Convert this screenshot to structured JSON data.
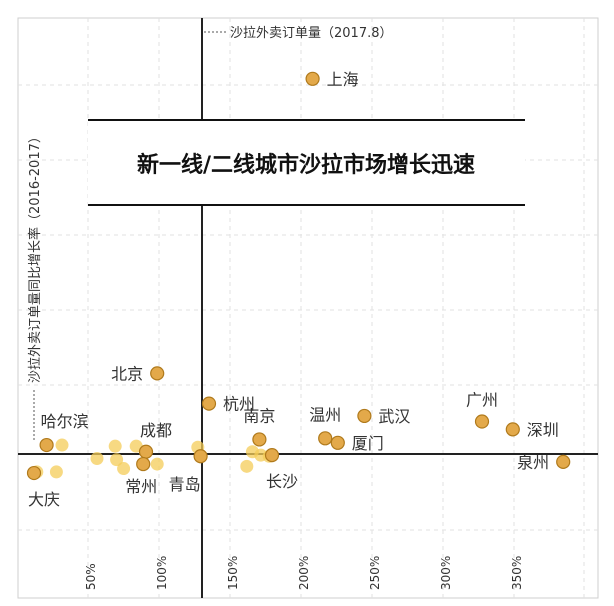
{
  "chart_data": {
    "type": "scatter",
    "title": "新一线/二线城市沙拉市场增长迅速",
    "xlabel": "沙拉外卖订单量（2017.8）",
    "ylabel": "沙拉外卖订单量同比增长率（2016-2017）",
    "xtick_labels": [
      "50%",
      "100%",
      "150%",
      "200%",
      "250%",
      "300%",
      "350%"
    ],
    "grid": true,
    "colors": {
      "dot_fill": "#e3a94a",
      "dot_stroke": "#b07a1c",
      "faint_dot": "#f4cc58",
      "axis": "#222222",
      "grid": "#e2e2e2"
    },
    "points": [
      {
        "name": "上海",
        "x": 209,
        "y": 335
      },
      {
        "name": "北京",
        "x": 98,
        "y": 72
      },
      {
        "name": "杭州",
        "x": 135,
        "y": 45
      },
      {
        "name": "武汉",
        "x": 246,
        "y": 34
      },
      {
        "name": "广州",
        "x": 330,
        "y": 29
      },
      {
        "name": "深圳",
        "x": 352,
        "y": 22
      },
      {
        "name": "南京",
        "x": 171,
        "y": 13
      },
      {
        "name": "温州",
        "x": 218,
        "y": 14
      },
      {
        "name": "厦门",
        "x": 227,
        "y": 10
      },
      {
        "name": "哈尔滨",
        "x": 19,
        "y": 8
      },
      {
        "name": "成都",
        "x": 90,
        "y": 2
      },
      {
        "name": "长沙",
        "x": 180,
        "y": -1
      },
      {
        "name": "泉州",
        "x": 388,
        "y": -7
      },
      {
        "name": "常州",
        "x": 88,
        "y": -9
      },
      {
        "name": "青岛",
        "x": 129,
        "y": -2
      },
      {
        "name": "大庆",
        "x": 10,
        "y": -17
      }
    ],
    "unlabeled_points": [
      {
        "x": 30,
        "y": 8
      },
      {
        "x": 68,
        "y": 7
      },
      {
        "x": 83,
        "y": 7
      },
      {
        "x": 127,
        "y": 6
      },
      {
        "x": 166,
        "y": 2
      },
      {
        "x": 172,
        "y": -1
      },
      {
        "x": 178,
        "y": -2
      },
      {
        "x": 55,
        "y": -4
      },
      {
        "x": 69,
        "y": -5
      },
      {
        "x": 98,
        "y": -9
      },
      {
        "x": 162,
        "y": -11
      },
      {
        "x": 26,
        "y": -16
      },
      {
        "x": 74,
        "y": -13
      },
      {
        "x": 12,
        "y": -16
      }
    ]
  }
}
